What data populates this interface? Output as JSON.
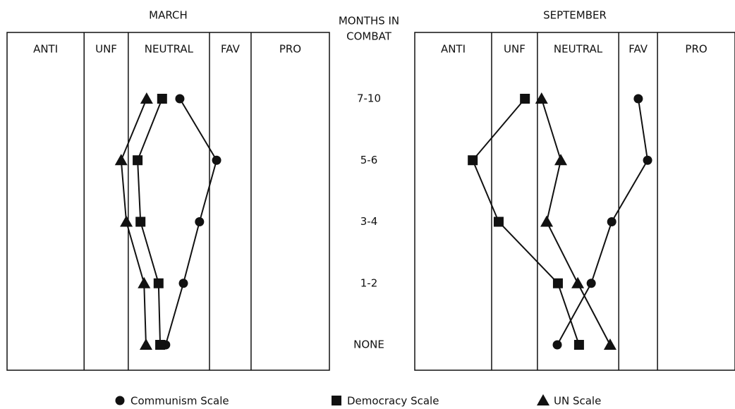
{
  "chart_data": {
    "type": "line",
    "y_label": [
      "MONTHS IN",
      "COMBAT"
    ],
    "categories": [
      "7-10",
      "5-6",
      "3-4",
      "1-2",
      "NONE"
    ],
    "xlim": [
      0,
      100
    ],
    "color": "#111111",
    "series": [
      {
        "name": "Communism Scale",
        "marker": "circle"
      },
      {
        "name": "Democracy Scale",
        "marker": "square"
      },
      {
        "name": "UN Scale",
        "marker": "triangle"
      }
    ],
    "panels": [
      {
        "title": "MARCH",
        "zones": [
          {
            "label": "ANTI",
            "end": 23.9
          },
          {
            "label": "UNF",
            "end": 37.6
          },
          {
            "label": "NEUTRAL",
            "end": 62.8
          },
          {
            "label": "FAV",
            "end": 75.7
          },
          {
            "label": "PRO",
            "end": 100
          }
        ],
        "values": [
          [
            53.6,
            65.0,
            59.7,
            54.7,
            49.2
          ],
          [
            48.1,
            40.5,
            41.4,
            47.0,
            47.5
          ],
          [
            43.3,
            35.4,
            37.0,
            42.5,
            43.1
          ]
        ]
      },
      {
        "title": "SEPTEMBER",
        "zones": [
          {
            "label": "ANTI",
            "end": 24.0
          },
          {
            "label": "UNF",
            "end": 38.3
          },
          {
            "label": "NEUTRAL",
            "end": 63.7
          },
          {
            "label": "FAV",
            "end": 75.8
          },
          {
            "label": "PRO",
            "end": 100
          }
        ],
        "values": [
          [
            69.8,
            72.7,
            61.5,
            55.1,
            44.5
          ],
          [
            34.4,
            18.1,
            26.2,
            44.7,
            51.3
          ],
          [
            39.6,
            45.6,
            41.2,
            50.9,
            61.0
          ]
        ]
      }
    ]
  }
}
